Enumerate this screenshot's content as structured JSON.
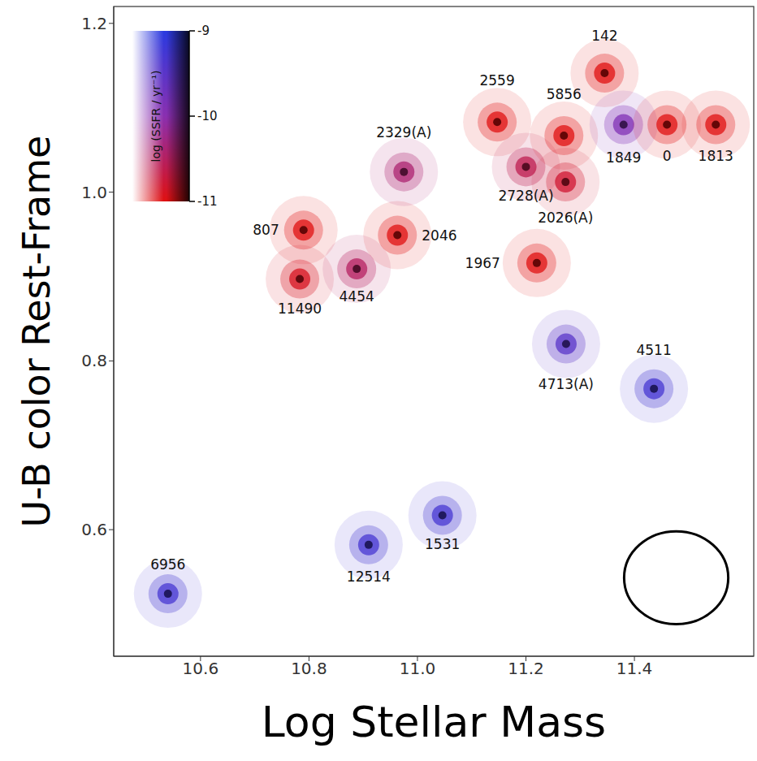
{
  "chart_data": {
    "type": "scatter",
    "xlabel": "Log Stellar Mass",
    "ylabel": "U-B color Rest-Frame",
    "xlim": [
      10.44,
      11.62
    ],
    "xticks": [
      10.6,
      10.8,
      {
        "value": 11,
        "label": "11.0"
      },
      11.2,
      11.4
    ],
    "ylim": [
      0.45,
      1.22
    ],
    "yticks": [
      0.6,
      0.8,
      {
        "value": 1,
        "label": "1.0"
      },
      1.2
    ],
    "points": [
      {
        "label": "6956",
        "x": 10.54,
        "y": 0.524,
        "log_ssfr": -9.3
      },
      {
        "label": "12514",
        "x": 10.91,
        "y": 0.582,
        "log_ssfr": -9.3
      },
      {
        "label": "1531",
        "x": 11.046,
        "y": 0.617,
        "log_ssfr": -9.3
      },
      {
        "label": "807",
        "x": 10.79,
        "y": 0.955,
        "log_ssfr": -11
      },
      {
        "label": "11490",
        "x": 10.783,
        "y": 0.897,
        "log_ssfr": -10.9
      },
      {
        "label": "4454",
        "x": 10.888,
        "y": 0.909,
        "log_ssfr": -10.5
      },
      {
        "label": "2046",
        "x": 10.963,
        "y": 0.949,
        "log_ssfr": -11
      },
      {
        "label": "2329(A)",
        "x": 10.975,
        "y": 1.024,
        "log_ssfr": -10.4
      },
      {
        "label": "2559",
        "x": 11.147,
        "y": 1.083,
        "log_ssfr": -11
      },
      {
        "label": "2728(A)",
        "x": 11.2,
        "y": 1.03,
        "log_ssfr": -10.6
      },
      {
        "label": "5856",
        "x": 11.27,
        "y": 1.067,
        "log_ssfr": -11
      },
      {
        "label": "2026(A)",
        "x": 11.273,
        "y": 1.012,
        "log_ssfr": -10.8
      },
      {
        "label": "142",
        "x": 11.345,
        "y": 1.141,
        "log_ssfr": -11
      },
      {
        "label": "1849",
        "x": 11.38,
        "y": 1.08,
        "log_ssfr": -9.9
      },
      {
        "label": "0",
        "x": 11.46,
        "y": 1.08,
        "log_ssfr": -11
      },
      {
        "label": "1813",
        "x": 11.55,
        "y": 1.08,
        "log_ssfr": -11
      },
      {
        "label": "1967",
        "x": 11.22,
        "y": 0.916,
        "log_ssfr": -11
      },
      {
        "label": "4713(A)",
        "x": 11.274,
        "y": 0.82,
        "log_ssfr": -9.5
      },
      {
        "label": "4511",
        "x": 11.436,
        "y": 0.767,
        "log_ssfr": -9.3
      }
    ],
    "colorbar": {
      "label": "log (SSFR / yr⁻¹)",
      "range": [
        -11,
        -9
      ],
      "ticks": [
        -9,
        -10,
        -11
      ],
      "colors": [
        "#e01010",
        "#8a2fb0",
        "#2a3ae0"
      ]
    },
    "error_ellipse": {
      "x": 11.477,
      "y": 0.543,
      "x_err": 0.096,
      "y_err": 0.055
    }
  }
}
